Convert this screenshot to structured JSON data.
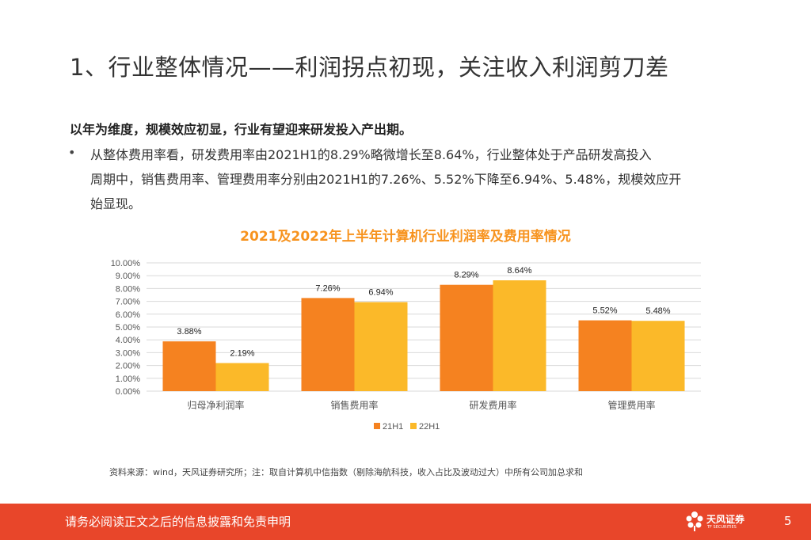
{
  "header": {
    "title": "1、行业整体情况——利润拐点初现，关注收入利润剪刀差"
  },
  "body": {
    "lead": "以年为维度，规模效应初显，行业有望迎来研发投入产出期。",
    "bullet_marker": "•",
    "bullet_lines": [
      "从整体费用率看，研发费用率由2021H1的8.29%略微增长至8.64%，行业整体处于产品研发高投入",
      "周期中，销售费用率、管理费用率分别由2021H1的7.26%、5.52%下降至6.94%、5.48%，规模效应开",
      "始显现。"
    ]
  },
  "chart_data": {
    "type": "bar",
    "title": "2021及2022年上半年计算机行业利润率及费用率情况",
    "categories": [
      "归母净利润率",
      "销售费用率",
      "研发费用率",
      "管理费用率"
    ],
    "series": [
      {
        "name": "21H1",
        "values": [
          3.88,
          7.26,
          8.29,
          5.52
        ],
        "labels": [
          "3.88%",
          "7.26%",
          "8.29%",
          "5.52%"
        ],
        "color": "#F58220"
      },
      {
        "name": "22H1",
        "values": [
          2.19,
          6.94,
          8.64,
          5.48
        ],
        "labels": [
          "2.19%",
          "6.94%",
          "8.64%",
          "5.48%"
        ],
        "color": "#FBB929"
      }
    ],
    "ylim": [
      0,
      10
    ],
    "ytick_values": [
      0,
      1,
      2,
      3,
      4,
      5,
      6,
      7,
      8,
      9,
      10
    ],
    "ytick_labels": [
      "0.00%",
      "1.00%",
      "2.00%",
      "3.00%",
      "4.00%",
      "5.00%",
      "6.00%",
      "7.00%",
      "8.00%",
      "9.00%",
      "10.00%"
    ],
    "xlabel": "",
    "ylabel": "",
    "grid": true,
    "legend_position": "bottom-center"
  },
  "source": {
    "text": "资料来源：wind，天风证券研究所；注：取自计算机中信指数（剔除海航科技，收入占比及波动过大）中所有公司加总求和"
  },
  "footer": {
    "disclaimer": "请务必阅读正文之后的信息披露和免责申明",
    "logo_name": "天风证券",
    "logo_sub": "TF SECURITIES",
    "page_number": "5"
  },
  "colors": {
    "footer_bg": "#E8462A",
    "chart_title": "#F7931E"
  }
}
